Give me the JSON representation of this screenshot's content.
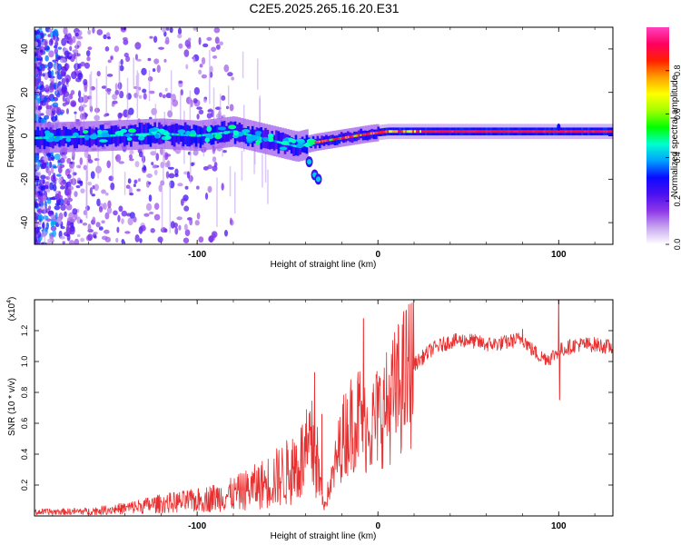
{
  "figure": {
    "title": "C2E5.2025.265.16.20.E31"
  },
  "chart_data": [
    {
      "type": "heatmap",
      "id": "spectrogram",
      "title": "C2E5.2025.265.16.20.E31",
      "xlabel": "Height of straight line (km)",
      "ylabel": "Frequency (Hz)",
      "xlim": [
        -190,
        130
      ],
      "ylim": [
        -50,
        50
      ],
      "x_ticks": [
        -100,
        0,
        100
      ],
      "x_tick_labels": [
        "-100",
        "0",
        "100"
      ],
      "y_ticks": [
        -40,
        -20,
        0,
        20,
        40
      ],
      "y_tick_labels": [
        "-40",
        "-20",
        "0",
        "20",
        "40"
      ],
      "colorbar": {
        "label": "Normalized spectral amplitude",
        "range": [
          0,
          1
        ],
        "ticks": [
          0.0,
          0.2,
          0.4,
          0.6,
          0.8
        ],
        "tick_labels": [
          "0.0",
          "0.2",
          "0.4",
          "0.6",
          "0.8"
        ],
        "colormap": [
          "#ffffff",
          "#c9a8f0",
          "#8e38e8",
          "#4b10f0",
          "#0a0aff",
          "#00a0ff",
          "#00ffd0",
          "#00ff00",
          "#a0ff00",
          "#ffff00",
          "#ffa000",
          "#ff2000",
          "#ff0060",
          "#ff40c0"
        ]
      },
      "ridge": {
        "description": "dominant frequency ridge",
        "points": [
          {
            "x": -190,
            "f": -1
          },
          {
            "x": -150,
            "f": 0
          },
          {
            "x": -120,
            "f": 1
          },
          {
            "x": -100,
            "f": 0
          },
          {
            "x": -80,
            "f": 2
          },
          {
            "x": -60,
            "f": -2
          },
          {
            "x": -45,
            "f": -5
          },
          {
            "x": -35,
            "f": -3
          },
          {
            "x": -20,
            "f": -1
          },
          {
            "x": -5,
            "f": 1
          },
          {
            "x": 5,
            "f": 2
          },
          {
            "x": 30,
            "f": 2
          },
          {
            "x": 100,
            "f": 2
          },
          {
            "x": 130,
            "f": 2
          }
        ]
      },
      "secondary_branch": {
        "description": "downward branch near -35 km",
        "points": [
          {
            "x": -38,
            "f": -12
          },
          {
            "x": -35,
            "f": -18
          },
          {
            "x": -33,
            "f": -20
          }
        ]
      }
    },
    {
      "type": "line",
      "id": "snr",
      "xlabel": "Height of straight line (km)",
      "ylabel": "SNR (10 * v/v)",
      "y_multiplier_label": "(x10",
      "y_multiplier_exp": "4",
      "y_multiplier_close": ")",
      "xlim": [
        -190,
        130
      ],
      "ylim": [
        0,
        14000
      ],
      "x_ticks": [
        -100,
        0,
        100
      ],
      "x_tick_labels": [
        "-100",
        "0",
        "100"
      ],
      "y_ticks": [
        2000,
        4000,
        6000,
        8000,
        10000,
        12000
      ],
      "y_tick_labels": [
        "0.2",
        "0.4",
        "0.6",
        "0.8",
        "1.0",
        "1.2"
      ],
      "series": [
        {
          "name": "SNR",
          "color": "#e83030",
          "envelope": [
            {
              "x": -190,
              "y": 250
            },
            {
              "x": -160,
              "y": 300
            },
            {
              "x": -140,
              "y": 500
            },
            {
              "x": -120,
              "y": 800
            },
            {
              "x": -100,
              "y": 1000
            },
            {
              "x": -80,
              "y": 1400
            },
            {
              "x": -65,
              "y": 2000
            },
            {
              "x": -50,
              "y": 2800
            },
            {
              "x": -40,
              "y": 3800
            },
            {
              "x": -35,
              "y": 4500
            },
            {
              "x": -30,
              "y": 600
            },
            {
              "x": -25,
              "y": 2500
            },
            {
              "x": -20,
              "y": 5000
            },
            {
              "x": -15,
              "y": 6000
            },
            {
              "x": -10,
              "y": 6500
            },
            {
              "x": -5,
              "y": 5500
            },
            {
              "x": 0,
              "y": 6500
            },
            {
              "x": 5,
              "y": 7000
            },
            {
              "x": 10,
              "y": 8000
            },
            {
              "x": 20,
              "y": 9800
            },
            {
              "x": 30,
              "y": 10800
            },
            {
              "x": 40,
              "y": 11300
            },
            {
              "x": 50,
              "y": 11400
            },
            {
              "x": 60,
              "y": 11100
            },
            {
              "x": 70,
              "y": 11200
            },
            {
              "x": 80,
              "y": 11500
            },
            {
              "x": 85,
              "y": 10800
            },
            {
              "x": 90,
              "y": 10300
            },
            {
              "x": 95,
              "y": 10200
            },
            {
              "x": 100,
              "y": 10700
            },
            {
              "x": 110,
              "y": 11100
            },
            {
              "x": 120,
              "y": 11100
            },
            {
              "x": 130,
              "y": 10900
            }
          ],
          "spikes": [
            {
              "x": -35,
              "y": 9300
            },
            {
              "x": -31,
              "y": 6600
            },
            {
              "x": -8,
              "y": 12800
            },
            {
              "x": -5,
              "y": 5000
            },
            {
              "x": 10,
              "y": 5400
            },
            {
              "x": 80,
              "y": 12100
            },
            {
              "x": 100,
              "y": 14000
            },
            {
              "x": 100.5,
              "y": 7500
            }
          ]
        }
      ]
    }
  ]
}
